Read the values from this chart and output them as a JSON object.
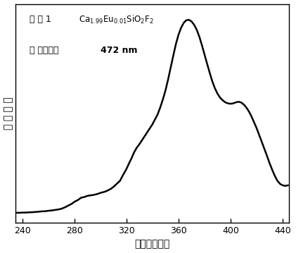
{
  "xlim": [
    235,
    445
  ],
  "ylim_min": -0.02,
  "ylim_max": 1.08,
  "xlabel": "波长（纳米）",
  "ylabel": "相 对 强 度",
  "xticks": [
    240,
    280,
    320,
    360,
    400,
    440
  ],
  "background_color": "#ffffff",
  "line_color": "#000000",
  "line_width": 1.8,
  "curve_x": [
    235,
    238,
    240,
    242,
    245,
    248,
    250,
    252,
    255,
    258,
    260,
    263,
    265,
    268,
    270,
    273,
    275,
    278,
    280,
    283,
    285,
    288,
    290,
    293,
    295,
    298,
    300,
    303,
    305,
    308,
    310,
    312,
    315,
    317,
    320,
    322,
    324,
    326,
    328,
    330,
    332,
    334,
    336,
    338,
    340,
    342,
    344,
    346,
    348,
    350,
    352,
    354,
    356,
    358,
    360,
    362,
    364,
    366,
    368,
    370,
    372,
    374,
    376,
    378,
    380,
    382,
    384,
    386,
    388,
    390,
    392,
    394,
    396,
    398,
    400,
    402,
    404,
    406,
    408,
    410,
    412,
    414,
    416,
    418,
    420,
    422,
    424,
    426,
    428,
    430,
    432,
    434,
    436,
    438,
    440,
    442,
    444
  ],
  "curve_y": [
    0.03,
    0.03,
    0.031,
    0.031,
    0.032,
    0.033,
    0.034,
    0.035,
    0.037,
    0.038,
    0.04,
    0.042,
    0.044,
    0.047,
    0.05,
    0.058,
    0.065,
    0.075,
    0.085,
    0.095,
    0.105,
    0.11,
    0.115,
    0.118,
    0.12,
    0.125,
    0.13,
    0.135,
    0.14,
    0.15,
    0.16,
    0.172,
    0.19,
    0.215,
    0.25,
    0.278,
    0.305,
    0.335,
    0.358,
    0.375,
    0.395,
    0.415,
    0.435,
    0.455,
    0.475,
    0.5,
    0.525,
    0.56,
    0.6,
    0.645,
    0.7,
    0.76,
    0.82,
    0.878,
    0.925,
    0.96,
    0.985,
    0.998,
    1.0,
    0.992,
    0.975,
    0.95,
    0.915,
    0.872,
    0.825,
    0.778,
    0.733,
    0.69,
    0.655,
    0.628,
    0.608,
    0.595,
    0.585,
    0.58,
    0.578,
    0.58,
    0.585,
    0.588,
    0.585,
    0.575,
    0.56,
    0.54,
    0.515,
    0.485,
    0.455,
    0.42,
    0.385,
    0.35,
    0.315,
    0.278,
    0.245,
    0.215,
    0.19,
    0.175,
    0.168,
    0.165,
    0.168
  ]
}
